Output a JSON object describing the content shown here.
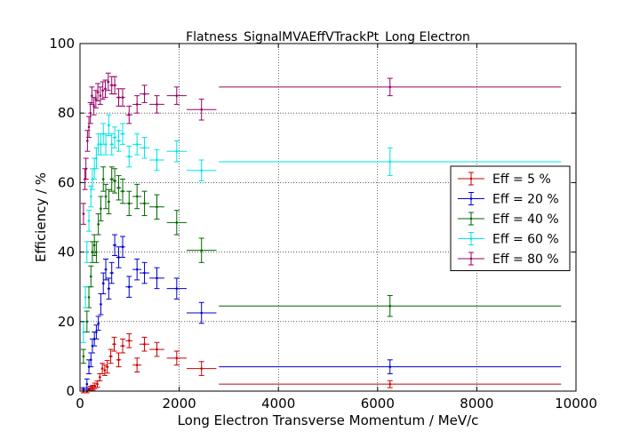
{
  "chart_data": {
    "type": "scatter",
    "title": "Flatness_SignalMVAEffVTrackPt_Long Electron",
    "xlabel": "Long Electron Transverse Momentum / MeV/c",
    "ylabel": "Efficiency / %",
    "xlim": [
      0,
      10000
    ],
    "ylim": [
      0,
      100
    ],
    "xticks": [
      "0",
      "2000",
      "4000",
      "6000",
      "8000",
      "10000"
    ],
    "yticks": [
      "0",
      "20",
      "40",
      "60",
      "80",
      "100"
    ],
    "grid": true,
    "legend_position": "right",
    "series": [
      {
        "name": "Eff = 5 %",
        "color": "#cc0000",
        "points": [
          {
            "x": 70,
            "xerr": 10,
            "y": 0,
            "yerr": 0.5
          },
          {
            "x": 140,
            "xerr": 15,
            "y": 0,
            "yerr": 0.5
          },
          {
            "x": 180,
            "xerr": 15,
            "y": 0.5,
            "yerr": 0.5
          },
          {
            "x": 220,
            "xerr": 15,
            "y": 0.8,
            "yerr": 0.6
          },
          {
            "x": 260,
            "xerr": 15,
            "y": 1.0,
            "yerr": 0.7
          },
          {
            "x": 300,
            "xerr": 15,
            "y": 1.5,
            "yerr": 0.8
          },
          {
            "x": 350,
            "xerr": 20,
            "y": 2.0,
            "yerr": 0.9
          },
          {
            "x": 400,
            "xerr": 20,
            "y": 4.0,
            "yerr": 1.0
          },
          {
            "x": 450,
            "xerr": 25,
            "y": 6.5,
            "yerr": 1.5
          },
          {
            "x": 500,
            "xerr": 25,
            "y": 6.0,
            "yerr": 1.5
          },
          {
            "x": 550,
            "xerr": 30,
            "y": 7.0,
            "yerr": 1.8
          },
          {
            "x": 620,
            "xerr": 40,
            "y": 10.0,
            "yerr": 2.0
          },
          {
            "x": 690,
            "xerr": 40,
            "y": 13.5,
            "yerr": 2.0
          },
          {
            "x": 780,
            "xerr": 50,
            "y": 9.0,
            "yerr": 2.0
          },
          {
            "x": 860,
            "xerr": 50,
            "y": 13.0,
            "yerr": 2.0
          },
          {
            "x": 990,
            "xerr": 70,
            "y": 14.5,
            "yerr": 2.0
          },
          {
            "x": 1150,
            "xerr": 90,
            "y": 7.5,
            "yerr": 2.0
          },
          {
            "x": 1300,
            "xerr": 100,
            "y": 13.5,
            "yerr": 2.0
          },
          {
            "x": 1550,
            "xerr": 150,
            "y": 12.0,
            "yerr": 2.0
          },
          {
            "x": 1950,
            "xerr": 200,
            "y": 9.5,
            "yerr": 2.0
          },
          {
            "x": 2450,
            "xerr": 300,
            "y": 6.5,
            "yerr": 2.0
          },
          {
            "x": 6250,
            "xerr": 3450,
            "y": 2.0,
            "yerr": 1.0
          }
        ]
      },
      {
        "name": "Eff = 20 %",
        "color": "#0000cc",
        "points": [
          {
            "x": 70,
            "xerr": 10,
            "y": 0.5,
            "yerr": 0.5
          },
          {
            "x": 140,
            "xerr": 15,
            "y": 2.0,
            "yerr": 1.5
          },
          {
            "x": 180,
            "xerr": 15,
            "y": 7.0,
            "yerr": 2.0
          },
          {
            "x": 220,
            "xerr": 15,
            "y": 9.0,
            "yerr": 2.0
          },
          {
            "x": 250,
            "xerr": 15,
            "y": 13.0,
            "yerr": 2.0
          },
          {
            "x": 290,
            "xerr": 15,
            "y": 15.0,
            "yerr": 2.0
          },
          {
            "x": 330,
            "xerr": 20,
            "y": 17.0,
            "yerr": 2.0
          },
          {
            "x": 370,
            "xerr": 20,
            "y": 19.5,
            "yerr": 2.0
          },
          {
            "x": 420,
            "xerr": 20,
            "y": 25.0,
            "yerr": 3.0
          },
          {
            "x": 470,
            "xerr": 25,
            "y": 31.0,
            "yerr": 3.0
          },
          {
            "x": 520,
            "xerr": 25,
            "y": 35.0,
            "yerr": 3.0
          },
          {
            "x": 580,
            "xerr": 30,
            "y": 29.5,
            "yerr": 3.0
          },
          {
            "x": 640,
            "xerr": 40,
            "y": 34.0,
            "yerr": 3.0
          },
          {
            "x": 700,
            "xerr": 40,
            "y": 42.0,
            "yerr": 3.0
          },
          {
            "x": 780,
            "xerr": 50,
            "y": 38.5,
            "yerr": 3.0
          },
          {
            "x": 860,
            "xerr": 50,
            "y": 41.5,
            "yerr": 3.0
          },
          {
            "x": 990,
            "xerr": 70,
            "y": 30.0,
            "yerr": 3.0
          },
          {
            "x": 1150,
            "xerr": 90,
            "y": 35.0,
            "yerr": 3.0
          },
          {
            "x": 1300,
            "xerr": 100,
            "y": 34.0,
            "yerr": 3.0
          },
          {
            "x": 1550,
            "xerr": 150,
            "y": 32.5,
            "yerr": 3.0
          },
          {
            "x": 1950,
            "xerr": 200,
            "y": 29.5,
            "yerr": 3.0
          },
          {
            "x": 2450,
            "xerr": 300,
            "y": 22.5,
            "yerr": 3.0
          },
          {
            "x": 6250,
            "xerr": 3450,
            "y": 7.0,
            "yerr": 2.0
          }
        ]
      },
      {
        "name": "Eff = 40 %",
        "color": "#006600",
        "points": [
          {
            "x": 70,
            "xerr": 10,
            "y": 10.0,
            "yerr": 2.0
          },
          {
            "x": 140,
            "xerr": 15,
            "y": 20.0,
            "yerr": 3.0
          },
          {
            "x": 180,
            "xerr": 15,
            "y": 27.0,
            "yerr": 3.0
          },
          {
            "x": 220,
            "xerr": 15,
            "y": 33.0,
            "yerr": 3.0
          },
          {
            "x": 250,
            "xerr": 15,
            "y": 40.0,
            "yerr": 3.0
          },
          {
            "x": 290,
            "xerr": 15,
            "y": 42.0,
            "yerr": 3.0
          },
          {
            "x": 330,
            "xerr": 20,
            "y": 40.0,
            "yerr": 3.0
          },
          {
            "x": 370,
            "xerr": 20,
            "y": 48.0,
            "yerr": 3.0
          },
          {
            "x": 420,
            "xerr": 20,
            "y": 52.5,
            "yerr": 3.5
          },
          {
            "x": 470,
            "xerr": 25,
            "y": 61.0,
            "yerr": 3.5
          },
          {
            "x": 520,
            "xerr": 25,
            "y": 56.0,
            "yerr": 3.5
          },
          {
            "x": 580,
            "xerr": 30,
            "y": 54.5,
            "yerr": 3.5
          },
          {
            "x": 640,
            "xerr": 40,
            "y": 61.0,
            "yerr": 3.5
          },
          {
            "x": 700,
            "xerr": 40,
            "y": 60.5,
            "yerr": 3.5
          },
          {
            "x": 780,
            "xerr": 50,
            "y": 58.5,
            "yerr": 3.5
          },
          {
            "x": 860,
            "xerr": 50,
            "y": 57.5,
            "yerr": 3.5
          },
          {
            "x": 990,
            "xerr": 70,
            "y": 54.0,
            "yerr": 3.5
          },
          {
            "x": 1150,
            "xerr": 90,
            "y": 56.0,
            "yerr": 3.5
          },
          {
            "x": 1300,
            "xerr": 100,
            "y": 54.0,
            "yerr": 3.5
          },
          {
            "x": 1550,
            "xerr": 150,
            "y": 53.0,
            "yerr": 3.5
          },
          {
            "x": 1950,
            "xerr": 200,
            "y": 48.5,
            "yerr": 3.5
          },
          {
            "x": 2450,
            "xerr": 300,
            "y": 40.5,
            "yerr": 3.5
          },
          {
            "x": 6250,
            "xerr": 3450,
            "y": 24.5,
            "yerr": 3.0
          }
        ]
      },
      {
        "name": "Eff = 60 %",
        "color": "#00e5e5",
        "points": [
          {
            "x": 70,
            "xerr": 10,
            "y": 17.0,
            "yerr": 3.0
          },
          {
            "x": 110,
            "xerr": 10,
            "y": 27.0,
            "yerr": 3.0
          },
          {
            "x": 140,
            "xerr": 15,
            "y": 40.0,
            "yerr": 3.0
          },
          {
            "x": 180,
            "xerr": 15,
            "y": 49.0,
            "yerr": 3.0
          },
          {
            "x": 220,
            "xerr": 15,
            "y": 56.0,
            "yerr": 3.0
          },
          {
            "x": 250,
            "xerr": 15,
            "y": 61.0,
            "yerr": 3.0
          },
          {
            "x": 290,
            "xerr": 15,
            "y": 64.0,
            "yerr": 3.0
          },
          {
            "x": 330,
            "xerr": 20,
            "y": 67.0,
            "yerr": 3.0
          },
          {
            "x": 370,
            "xerr": 20,
            "y": 71.0,
            "yerr": 3.0
          },
          {
            "x": 420,
            "xerr": 20,
            "y": 71.0,
            "yerr": 3.0
          },
          {
            "x": 470,
            "xerr": 25,
            "y": 74.0,
            "yerr": 3.0
          },
          {
            "x": 520,
            "xerr": 25,
            "y": 71.0,
            "yerr": 3.0
          },
          {
            "x": 580,
            "xerr": 30,
            "y": 76.5,
            "yerr": 3.0
          },
          {
            "x": 640,
            "xerr": 40,
            "y": 71.0,
            "yerr": 3.0
          },
          {
            "x": 700,
            "xerr": 40,
            "y": 73.0,
            "yerr": 3.0
          },
          {
            "x": 780,
            "xerr": 50,
            "y": 72.0,
            "yerr": 3.0
          },
          {
            "x": 860,
            "xerr": 50,
            "y": 74.0,
            "yerr": 3.0
          },
          {
            "x": 990,
            "xerr": 70,
            "y": 67.5,
            "yerr": 3.0
          },
          {
            "x": 1150,
            "xerr": 90,
            "y": 71.0,
            "yerr": 3.0
          },
          {
            "x": 1300,
            "xerr": 100,
            "y": 70.0,
            "yerr": 3.0
          },
          {
            "x": 1550,
            "xerr": 150,
            "y": 66.5,
            "yerr": 3.0
          },
          {
            "x": 1950,
            "xerr": 200,
            "y": 69.0,
            "yerr": 3.0
          },
          {
            "x": 2450,
            "xerr": 300,
            "y": 63.5,
            "yerr": 3.0
          },
          {
            "x": 6250,
            "xerr": 3450,
            "y": 66.0,
            "yerr": 4.0
          }
        ]
      },
      {
        "name": "Eff = 80 %",
        "color": "#990066",
        "points": [
          {
            "x": 70,
            "xerr": 10,
            "y": 51.0,
            "yerr": 3.0
          },
          {
            "x": 100,
            "xerr": 10,
            "y": 61.0,
            "yerr": 3.0
          },
          {
            "x": 120,
            "xerr": 10,
            "y": 64.0,
            "yerr": 3.0
          },
          {
            "x": 150,
            "xerr": 10,
            "y": 72.0,
            "yerr": 3.0
          },
          {
            "x": 180,
            "xerr": 15,
            "y": 76.0,
            "yerr": 3.0
          },
          {
            "x": 210,
            "xerr": 15,
            "y": 80.0,
            "yerr": 3.0
          },
          {
            "x": 240,
            "xerr": 15,
            "y": 85.0,
            "yerr": 2.5
          },
          {
            "x": 280,
            "xerr": 15,
            "y": 82.0,
            "yerr": 2.5
          },
          {
            "x": 320,
            "xerr": 20,
            "y": 84.0,
            "yerr": 2.5
          },
          {
            "x": 360,
            "xerr": 20,
            "y": 86.0,
            "yerr": 2.5
          },
          {
            "x": 410,
            "xerr": 20,
            "y": 85.0,
            "yerr": 2.5
          },
          {
            "x": 460,
            "xerr": 25,
            "y": 86.5,
            "yerr": 2.5
          },
          {
            "x": 510,
            "xerr": 25,
            "y": 87.0,
            "yerr": 2.5
          },
          {
            "x": 570,
            "xerr": 30,
            "y": 89.0,
            "yerr": 2.5
          },
          {
            "x": 640,
            "xerr": 40,
            "y": 88.0,
            "yerr": 2.5
          },
          {
            "x": 700,
            "xerr": 40,
            "y": 88.0,
            "yerr": 2.5
          },
          {
            "x": 780,
            "xerr": 50,
            "y": 84.5,
            "yerr": 2.5
          },
          {
            "x": 860,
            "xerr": 50,
            "y": 84.5,
            "yerr": 2.5
          },
          {
            "x": 990,
            "xerr": 70,
            "y": 79.5,
            "yerr": 2.5
          },
          {
            "x": 1150,
            "xerr": 90,
            "y": 82.5,
            "yerr": 2.5
          },
          {
            "x": 1300,
            "xerr": 100,
            "y": 85.5,
            "yerr": 2.5
          },
          {
            "x": 1550,
            "xerr": 150,
            "y": 82.5,
            "yerr": 2.5
          },
          {
            "x": 1950,
            "xerr": 200,
            "y": 85.0,
            "yerr": 2.5
          },
          {
            "x": 2450,
            "xerr": 300,
            "y": 81.0,
            "yerr": 3.0
          },
          {
            "x": 6250,
            "xerr": 3450,
            "y": 87.5,
            "yerr": 2.5
          }
        ]
      }
    ]
  }
}
